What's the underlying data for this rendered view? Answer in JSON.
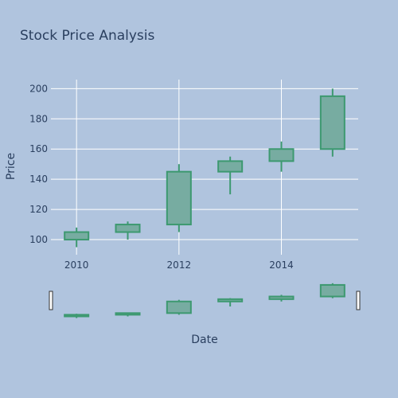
{
  "chart_data": {
    "type": "candlestick",
    "title": "Stock Price Analysis",
    "xlabel": "Date",
    "ylabel": "Price",
    "x": [
      "2010",
      "2011",
      "2012",
      "2013",
      "2014",
      "2015"
    ],
    "open": [
      100,
      105,
      110,
      145,
      152,
      160
    ],
    "high": [
      108,
      112,
      150,
      155,
      165,
      200
    ],
    "low": [
      95,
      100,
      105,
      130,
      145,
      155
    ],
    "close": [
      105,
      110,
      145,
      152,
      160,
      195
    ],
    "x_ticks": [
      "2010",
      "2012",
      "2014"
    ],
    "y_ticks": [
      "100",
      "120",
      "140",
      "160",
      "180",
      "200"
    ],
    "ylim": [
      90,
      206
    ],
    "grid": true,
    "rangeslider": true,
    "colors": {
      "background": "#b0c4de",
      "increasing": "#3d9970",
      "grid": "#ffffff",
      "text": "#2a3f5f"
    }
  }
}
